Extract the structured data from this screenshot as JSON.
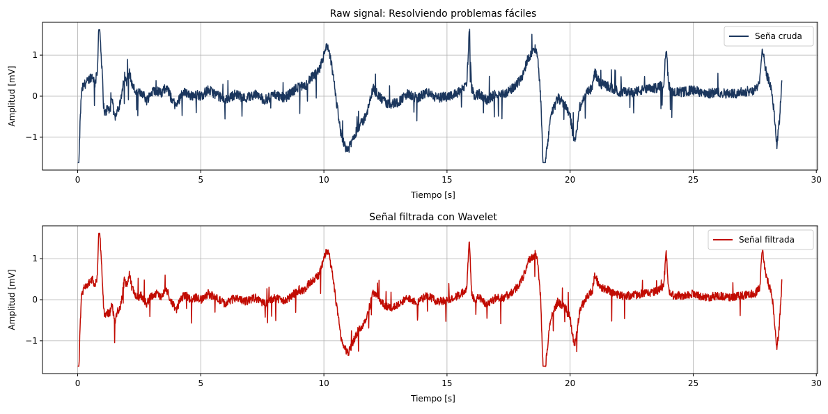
{
  "colors": {
    "background": "#ffffff",
    "grid": "#b0b0b0",
    "axis": "#000000",
    "legend_border": "#cccccc"
  },
  "chart_data": [
    {
      "type": "line",
      "title": "Raw signal: Resolviendo problemas fáciles",
      "xlabel": "Tiempo [s]",
      "ylabel": "Amplitud [mV]",
      "xlim": [
        -1.43,
        30.05
      ],
      "ylim": [
        -1.8,
        1.8
      ],
      "xticks": [
        0,
        5,
        10,
        15,
        20,
        25,
        30
      ],
      "yticks": [
        -1,
        0,
        1
      ],
      "xtick_labels": [
        "0",
        "5",
        "10",
        "15",
        "20",
        "25",
        "30"
      ],
      "ytick_labels": [
        "−1",
        "0",
        "1"
      ],
      "grid": true,
      "legend_position": "top-right",
      "series": [
        {
          "name": "Seña cruda",
          "color": "#1b365d",
          "x": [
            0,
            0.05,
            0.1,
            0.15,
            0.2,
            0.3,
            0.4,
            0.5,
            0.6,
            0.7,
            0.8,
            0.85,
            0.9,
            1.0,
            1.05,
            1.1,
            1.2,
            1.3,
            1.4,
            1.5,
            1.6,
            1.7,
            1.8,
            1.9,
            2.0,
            2.1,
            2.2,
            2.4,
            2.6,
            2.8,
            3.0,
            3.2,
            3.4,
            3.6,
            3.8,
            4.0,
            4.2,
            4.4,
            4.6,
            4.8,
            5.0,
            5.3,
            5.6,
            6.0,
            6.4,
            6.8,
            7.2,
            7.6,
            8.0,
            8.4,
            8.8,
            9.0,
            9.2,
            9.4,
            9.6,
            9.8,
            9.9,
            10.0,
            10.1,
            10.2,
            10.3,
            10.4,
            10.5,
            10.6,
            10.7,
            10.8,
            10.9,
            11.0,
            11.2,
            11.4,
            11.6,
            11.8,
            12.0,
            12.3,
            12.6,
            13.0,
            13.4,
            13.8,
            14.2,
            14.6,
            15.0,
            15.3,
            15.6,
            15.8,
            15.9,
            16.0,
            16.1,
            16.3,
            16.6,
            17.0,
            17.3,
            17.6,
            17.9,
            18.1,
            18.3,
            18.5,
            18.6,
            18.7,
            18.8,
            18.9,
            19.0,
            19.2,
            19.5,
            19.8,
            20.0,
            20.1,
            20.2,
            20.4,
            20.7,
            20.9,
            21.0,
            21.2,
            21.5,
            22.0,
            22.5,
            23.0,
            23.5,
            23.8,
            23.9,
            24.0,
            24.2,
            24.6,
            25.0,
            25.5,
            26.0,
            26.5,
            27.0,
            27.5,
            27.7,
            27.8,
            27.9,
            28.0,
            28.2,
            28.3,
            28.4,
            28.5,
            28.6
          ],
          "y": [
            -1.62,
            -1.62,
            -0.6,
            0.05,
            0.2,
            0.3,
            0.35,
            0.45,
            0.5,
            0.3,
            0.6,
            1.62,
            1.62,
            0.5,
            -0.2,
            -0.45,
            -0.3,
            -0.35,
            -0.1,
            -0.55,
            -0.3,
            -0.25,
            0.05,
            0.5,
            0.35,
            0.6,
            0.3,
            0.05,
            0.1,
            -0.1,
            0.1,
            0.15,
            0.05,
            0.25,
            -0.05,
            -0.25,
            0.05,
            0.1,
            0.0,
            0.05,
            0.0,
            0.15,
            0.05,
            -0.1,
            0.05,
            -0.05,
            0.05,
            -0.1,
            0.05,
            -0.05,
            0.15,
            0.25,
            0.2,
            0.4,
            0.5,
            0.6,
            0.8,
            1.0,
            1.2,
            1.1,
            0.8,
            0.4,
            -0.1,
            -0.5,
            -0.95,
            -1.1,
            -1.25,
            -1.3,
            -1.0,
            -0.75,
            -0.6,
            -0.3,
            0.2,
            -0.05,
            -0.2,
            -0.15,
            0.05,
            -0.05,
            0.1,
            -0.05,
            0.0,
            0.05,
            0.15,
            0.3,
            1.5,
            0.2,
            0.0,
            0.05,
            -0.1,
            0.05,
            0.05,
            0.15,
            0.35,
            0.55,
            0.95,
            1.05,
            1.2,
            0.8,
            0.05,
            -1.62,
            -1.62,
            -0.5,
            -0.05,
            -0.2,
            -0.45,
            -0.9,
            -1.1,
            -0.25,
            0.1,
            0.2,
            0.6,
            0.3,
            0.25,
            0.1,
            0.1,
            0.15,
            0.2,
            0.3,
            1.2,
            0.25,
            0.1,
            0.1,
            0.15,
            0.05,
            0.1,
            0.05,
            0.1,
            0.15,
            0.3,
            1.25,
            0.8,
            0.5,
            0.1,
            -0.5,
            -1.2,
            -0.6,
            0.4
          ]
        }
      ]
    },
    {
      "type": "line",
      "title": "Señal filtrada con Wavelet",
      "xlabel": "Tiempo [s]",
      "ylabel": "Amplitud [mV]",
      "xlim": [
        -1.43,
        30.05
      ],
      "ylim": [
        -1.8,
        1.8
      ],
      "xticks": [
        0,
        5,
        10,
        15,
        20,
        25,
        30
      ],
      "yticks": [
        -1,
        0,
        1
      ],
      "xtick_labels": [
        "0",
        "5",
        "10",
        "15",
        "20",
        "25",
        "30"
      ],
      "ytick_labels": [
        "−1",
        "0",
        "1"
      ],
      "grid": true,
      "legend_position": "top-right",
      "series": [
        {
          "name": "Señal filtrada",
          "color": "#c10b02",
          "x": [
            0,
            0.05,
            0.1,
            0.15,
            0.2,
            0.3,
            0.4,
            0.5,
            0.6,
            0.7,
            0.8,
            0.85,
            0.9,
            1.0,
            1.05,
            1.1,
            1.2,
            1.3,
            1.4,
            1.5,
            1.6,
            1.7,
            1.8,
            1.9,
            2.0,
            2.1,
            2.2,
            2.4,
            2.6,
            2.8,
            3.0,
            3.2,
            3.4,
            3.6,
            3.8,
            4.0,
            4.2,
            4.4,
            4.6,
            4.8,
            5.0,
            5.3,
            5.6,
            6.0,
            6.4,
            6.8,
            7.2,
            7.6,
            8.0,
            8.4,
            8.8,
            9.0,
            9.2,
            9.4,
            9.6,
            9.8,
            9.9,
            10.0,
            10.1,
            10.2,
            10.3,
            10.4,
            10.5,
            10.6,
            10.7,
            10.8,
            10.9,
            11.0,
            11.2,
            11.4,
            11.6,
            11.8,
            12.0,
            12.3,
            12.6,
            13.0,
            13.4,
            13.8,
            14.2,
            14.6,
            15.0,
            15.3,
            15.6,
            15.8,
            15.9,
            16.0,
            16.1,
            16.3,
            16.6,
            17.0,
            17.3,
            17.6,
            17.9,
            18.1,
            18.3,
            18.5,
            18.6,
            18.7,
            18.8,
            18.9,
            19.0,
            19.2,
            19.5,
            19.8,
            20.0,
            20.1,
            20.2,
            20.4,
            20.7,
            20.9,
            21.0,
            21.2,
            21.5,
            22.0,
            22.5,
            23.0,
            23.5,
            23.8,
            23.9,
            24.0,
            24.2,
            24.6,
            25.0,
            25.5,
            26.0,
            26.5,
            27.0,
            27.5,
            27.7,
            27.8,
            27.9,
            28.0,
            28.2,
            28.3,
            28.4,
            28.5,
            28.6
          ],
          "y": [
            -1.62,
            -1.62,
            -0.6,
            0.05,
            0.2,
            0.3,
            0.35,
            0.45,
            0.5,
            0.3,
            0.6,
            1.62,
            1.62,
            0.5,
            -0.2,
            -0.45,
            -0.3,
            -0.35,
            -0.1,
            -0.55,
            -0.3,
            -0.25,
            0.05,
            0.5,
            0.35,
            0.6,
            0.3,
            0.05,
            0.1,
            -0.1,
            0.1,
            0.15,
            0.05,
            0.25,
            -0.05,
            -0.25,
            0.05,
            0.1,
            0.0,
            0.05,
            0.0,
            0.15,
            0.05,
            -0.1,
            0.05,
            -0.05,
            0.05,
            -0.1,
            0.05,
            -0.05,
            0.15,
            0.25,
            0.2,
            0.4,
            0.5,
            0.6,
            0.8,
            1.0,
            1.2,
            1.1,
            0.8,
            0.4,
            -0.1,
            -0.5,
            -0.95,
            -1.1,
            -1.25,
            -1.3,
            -1.0,
            -0.75,
            -0.6,
            -0.3,
            0.2,
            -0.05,
            -0.2,
            -0.15,
            0.05,
            -0.05,
            0.1,
            -0.05,
            0.0,
            0.05,
            0.15,
            0.3,
            1.5,
            0.2,
            0.0,
            0.05,
            -0.1,
            0.05,
            0.05,
            0.15,
            0.35,
            0.55,
            0.95,
            1.05,
            1.2,
            0.8,
            0.05,
            -1.62,
            -1.62,
            -0.5,
            -0.05,
            -0.2,
            -0.45,
            -0.9,
            -1.1,
            -0.25,
            0.1,
            0.2,
            0.6,
            0.3,
            0.25,
            0.1,
            0.1,
            0.15,
            0.2,
            0.3,
            1.2,
            0.25,
            0.1,
            0.1,
            0.15,
            0.05,
            0.1,
            0.05,
            0.1,
            0.15,
            0.3,
            1.25,
            0.8,
            0.5,
            0.1,
            -0.5,
            -1.2,
            -0.6,
            0.4
          ]
        }
      ]
    }
  ]
}
